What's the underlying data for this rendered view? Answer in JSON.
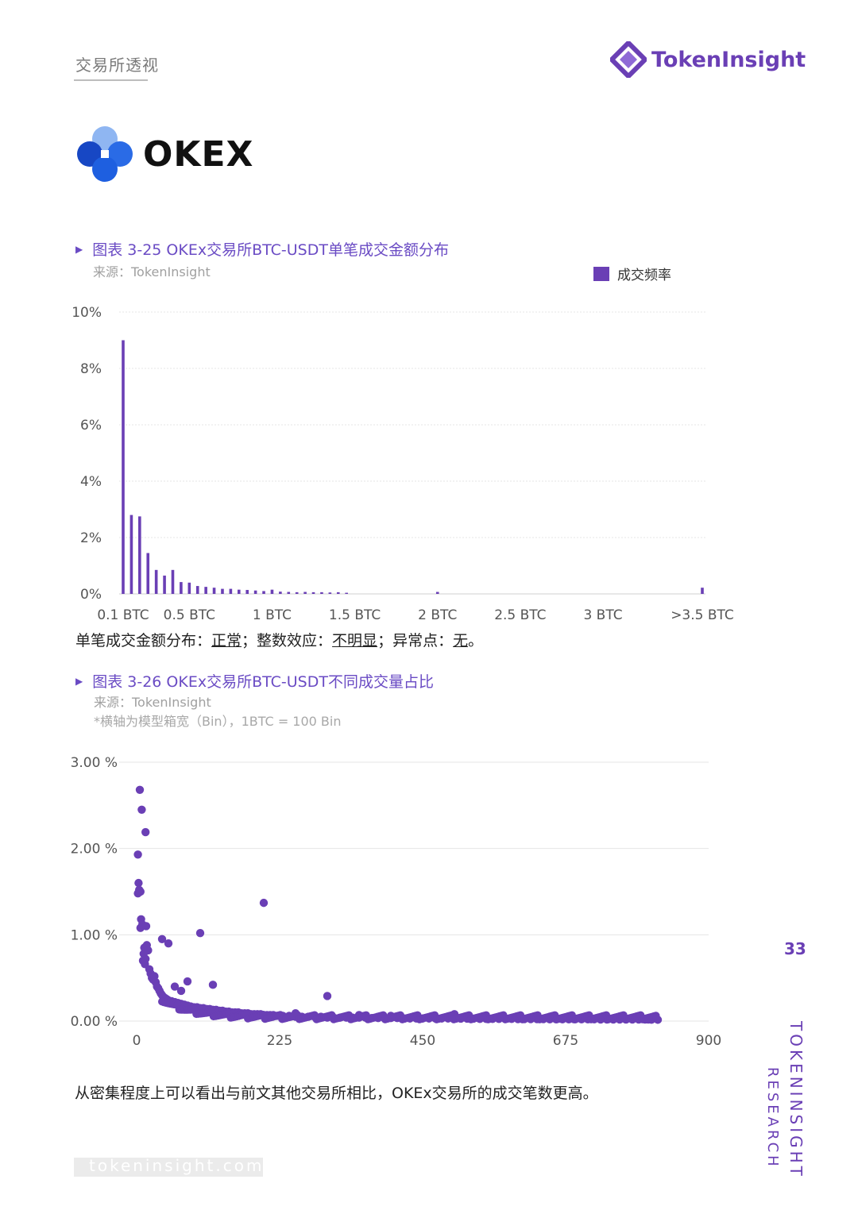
{
  "header": {
    "section_tag": "交易所透视",
    "brand_name": "TokenInsight",
    "brand_icon": "tokeninsight-logo-icon"
  },
  "exchange_logo": {
    "name": "OKEX",
    "icon": "okex-logo-icon",
    "colors": [
      "#2a6be6",
      "#1747c4",
      "#8fb6f2",
      "#1e5fe0"
    ]
  },
  "figure1": {
    "title": "图表 3-25 OKEx交易所BTC-USDT单笔成交金额分布",
    "source": "来源：TokenInsight",
    "legend": "成交频率",
    "summary": {
      "prefix": "单笔成交金额分布：",
      "v1": "正常",
      "sep1": "；整数效应：",
      "v2": "不明显",
      "sep2": "；异常点：",
      "v3": "无",
      "end": "。"
    }
  },
  "figure2": {
    "title": "图表 3-26 OKEx交易所BTC-USDT不同成交量占比",
    "source": "来源：TokenInsight",
    "note": "*横轴为模型箱宽（Bin），1BTC = 100 Bin"
  },
  "conclusion": "从密集程度上可以看出与前文其他交易所相比，OKEx交易所的成交笔数更高。",
  "page_number": "33",
  "side_label": {
    "line1": "TOKENINSIGHT",
    "line2": "RESEARCH"
  },
  "footer_url": "tokeninsight.com",
  "colors": {
    "accent": "#6a3fb5",
    "grid": "#e4e4e4"
  },
  "chart_data": [
    {
      "type": "bar",
      "title": "图表 3-25 OKEx交易所BTC-USDT单笔成交金额分布",
      "series": [
        {
          "name": "成交频率"
        }
      ],
      "yticks": [
        "0%",
        "2%",
        "4%",
        "6%",
        "8%",
        "10%"
      ],
      "ylim": [
        0,
        10
      ],
      "xticks": [
        "0.1 BTC",
        "0.5 BTC",
        "1 BTC",
        "1.5 BTC",
        "2 BTC",
        "2.5 BTC",
        "3 BTC",
        ">3.5 BTC"
      ],
      "x_unit": "BTC",
      "x": [
        0.1,
        0.15,
        0.2,
        0.25,
        0.3,
        0.35,
        0.4,
        0.45,
        0.5,
        0.55,
        0.6,
        0.65,
        0.7,
        0.75,
        0.8,
        0.85,
        0.9,
        0.95,
        1.0,
        1.05,
        1.1,
        1.15,
        1.2,
        1.25,
        1.3,
        1.35,
        1.4,
        1.45,
        2.0,
        3.6
      ],
      "values": [
        9.0,
        2.8,
        2.75,
        1.45,
        0.85,
        0.65,
        0.85,
        0.42,
        0.4,
        0.28,
        0.25,
        0.22,
        0.18,
        0.18,
        0.15,
        0.14,
        0.12,
        0.1,
        0.15,
        0.08,
        0.07,
        0.06,
        0.07,
        0.06,
        0.06,
        0.05,
        0.06,
        0.04,
        0.07,
        0.22
      ],
      "grid": true,
      "legend_position": "top-right"
    },
    {
      "type": "scatter",
      "title": "图表 3-26 OKEx交易所BTC-USDT不同成交量占比",
      "yticks": [
        "0.00 %",
        "1.00 %",
        "2.00 %",
        "3.00 %"
      ],
      "ylim": [
        0,
        3
      ],
      "xticks": [
        "0",
        "225",
        "450",
        "675",
        "900"
      ],
      "xlim": [
        0,
        900
      ],
      "points": [
        [
          2,
          1.93
        ],
        [
          5,
          2.68
        ],
        [
          8,
          2.45
        ],
        [
          14,
          2.19
        ],
        [
          3,
          1.6
        ],
        [
          4,
          1.52
        ],
        [
          6,
          1.5
        ],
        [
          2,
          1.48
        ],
        [
          7,
          1.18
        ],
        [
          9,
          1.12
        ],
        [
          6,
          1.08
        ],
        [
          15,
          1.1
        ],
        [
          12,
          0.85
        ],
        [
          11,
          0.78
        ],
        [
          10,
          0.7
        ],
        [
          16,
          0.88
        ],
        [
          18,
          0.82
        ],
        [
          14,
          0.72
        ],
        [
          13,
          0.66
        ],
        [
          20,
          0.6
        ],
        [
          22,
          0.55
        ],
        [
          24,
          0.5
        ],
        [
          26,
          0.48
        ],
        [
          28,
          0.52
        ],
        [
          30,
          0.45
        ],
        [
          32,
          0.4
        ],
        [
          34,
          0.38
        ],
        [
          36,
          0.35
        ],
        [
          38,
          0.32
        ],
        [
          40,
          0.3
        ],
        [
          42,
          0.28
        ],
        [
          44,
          0.27
        ],
        [
          46,
          0.26
        ],
        [
          48,
          0.25
        ],
        [
          50,
          0.24
        ],
        [
          55,
          0.23
        ],
        [
          60,
          0.22
        ],
        [
          65,
          0.21
        ],
        [
          70,
          0.2
        ],
        [
          75,
          0.19
        ],
        [
          80,
          0.18
        ],
        [
          85,
          0.17
        ],
        [
          90,
          0.16
        ],
        [
          95,
          0.16
        ],
        [
          100,
          0.15
        ],
        [
          105,
          0.15
        ],
        [
          110,
          0.14
        ],
        [
          115,
          0.14
        ],
        [
          120,
          0.13
        ],
        [
          125,
          0.13
        ],
        [
          130,
          0.12
        ],
        [
          135,
          0.12
        ],
        [
          140,
          0.11
        ],
        [
          145,
          0.11
        ],
        [
          150,
          0.1
        ],
        [
          155,
          0.1
        ],
        [
          160,
          0.1
        ],
        [
          165,
          0.09
        ],
        [
          170,
          0.09
        ],
        [
          175,
          0.09
        ],
        [
          180,
          0.08
        ],
        [
          185,
          0.08
        ],
        [
          190,
          0.08
        ],
        [
          195,
          0.08
        ],
        [
          200,
          0.07
        ],
        [
          205,
          0.07
        ],
        [
          210,
          0.07
        ],
        [
          215,
          0.07
        ],
        [
          220,
          0.06
        ],
        [
          225,
          0.06
        ],
        [
          230,
          0.06
        ],
        [
          240,
          0.06
        ],
        [
          250,
          0.05
        ],
        [
          260,
          0.05
        ],
        [
          270,
          0.05
        ],
        [
          280,
          0.05
        ],
        [
          290,
          0.05
        ],
        [
          300,
          0.04
        ],
        [
          310,
          0.04
        ],
        [
          320,
          0.04
        ],
        [
          330,
          0.04
        ],
        [
          340,
          0.04
        ],
        [
          350,
          0.04
        ],
        [
          360,
          0.04
        ],
        [
          370,
          0.035
        ],
        [
          380,
          0.035
        ],
        [
          390,
          0.035
        ],
        [
          400,
          0.035
        ],
        [
          410,
          0.035
        ],
        [
          420,
          0.03
        ],
        [
          430,
          0.03
        ],
        [
          440,
          0.03
        ],
        [
          450,
          0.03
        ],
        [
          460,
          0.03
        ],
        [
          470,
          0.03
        ],
        [
          480,
          0.03
        ],
        [
          490,
          0.03
        ],
        [
          500,
          0.028
        ],
        [
          510,
          0.028
        ],
        [
          520,
          0.028
        ],
        [
          530,
          0.028
        ],
        [
          540,
          0.025
        ],
        [
          550,
          0.025
        ],
        [
          560,
          0.025
        ],
        [
          570,
          0.025
        ],
        [
          580,
          0.025
        ],
        [
          590,
          0.025
        ],
        [
          600,
          0.022
        ],
        [
          610,
          0.022
        ],
        [
          620,
          0.022
        ],
        [
          630,
          0.022
        ],
        [
          640,
          0.022
        ],
        [
          650,
          0.02
        ],
        [
          660,
          0.02
        ],
        [
          670,
          0.02
        ],
        [
          680,
          0.02
        ],
        [
          690,
          0.02
        ],
        [
          700,
          0.02
        ],
        [
          710,
          0.02
        ],
        [
          720,
          0.02
        ],
        [
          730,
          0.018
        ],
        [
          740,
          0.018
        ],
        [
          750,
          0.018
        ],
        [
          760,
          0.018
        ],
        [
          770,
          0.018
        ],
        [
          780,
          0.018
        ],
        [
          790,
          0.018
        ],
        [
          800,
          0.018
        ],
        [
          805,
          0.018
        ],
        [
          810,
          0.016
        ],
        [
          820,
          0.015
        ],
        [
          200,
          1.37
        ],
        [
          100,
          1.02
        ],
        [
          40,
          0.95
        ],
        [
          50,
          0.9
        ],
        [
          80,
          0.46
        ],
        [
          120,
          0.42
        ],
        [
          300,
          0.29
        ],
        [
          70,
          0.35
        ],
        [
          60,
          0.4
        ],
        [
          500,
          0.08
        ],
        [
          400,
          0.06
        ],
        [
          650,
          0.05
        ],
        [
          550,
          0.05
        ],
        [
          250,
          0.09
        ],
        [
          350,
          0.07
        ]
      ],
      "grid": true
    }
  ]
}
